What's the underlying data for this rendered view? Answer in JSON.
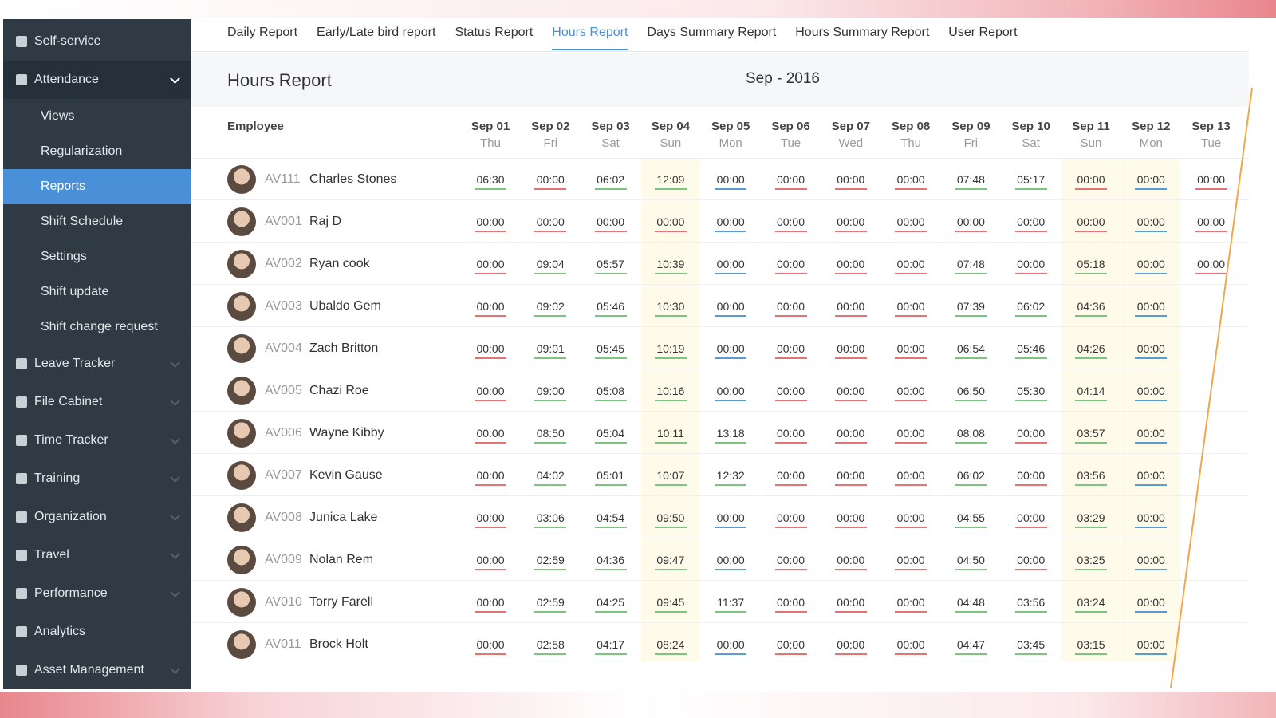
{
  "sidebar": {
    "items": [
      {
        "label": "Self-service"
      },
      {
        "label": "Attendance",
        "expanded": true
      },
      {
        "label": "Views",
        "sub": true
      },
      {
        "label": "Regularization",
        "sub": true
      },
      {
        "label": "Reports",
        "sub": true,
        "active": true
      },
      {
        "label": "Shift Schedule",
        "sub": true
      },
      {
        "label": "Settings",
        "sub": true
      },
      {
        "label": "Shift update",
        "sub": true
      },
      {
        "label": "Shift change request",
        "sub": true
      },
      {
        "label": "Leave Tracker",
        "collapsible": true
      },
      {
        "label": "File Cabinet",
        "collapsible": true
      },
      {
        "label": "Time Tracker",
        "collapsible": true
      },
      {
        "label": "Training",
        "collapsible": true
      },
      {
        "label": "Organization",
        "collapsible": true
      },
      {
        "label": "Travel",
        "collapsible": true
      },
      {
        "label": "Performance",
        "collapsible": true
      },
      {
        "label": "Analytics"
      },
      {
        "label": "Asset Management",
        "collapsible": true
      }
    ]
  },
  "tabs": [
    {
      "label": "Daily Report"
    },
    {
      "label": "Early/Late bird report"
    },
    {
      "label": "Status Report"
    },
    {
      "label": "Hours Report",
      "active": true
    },
    {
      "label": "Days Summary Report"
    },
    {
      "label": "Hours Summary Report"
    },
    {
      "label": "User Report"
    }
  ],
  "header": {
    "title": "Hours Report",
    "period": "Sep - 2016"
  },
  "table": {
    "employee_header": "Employee",
    "columns": [
      {
        "date": "Sep 01",
        "day": "Thu"
      },
      {
        "date": "Sep 02",
        "day": "Fri"
      },
      {
        "date": "Sep 03",
        "day": "Sat"
      },
      {
        "date": "Sep 04",
        "day": "Sun"
      },
      {
        "date": "Sep 05",
        "day": "Mon"
      },
      {
        "date": "Sep 06",
        "day": "Tue"
      },
      {
        "date": "Sep 07",
        "day": "Wed"
      },
      {
        "date": "Sep 08",
        "day": "Thu"
      },
      {
        "date": "Sep 09",
        "day": "Fri"
      },
      {
        "date": "Sep 10",
        "day": "Sat"
      },
      {
        "date": "Sep 11",
        "day": "Sun"
      },
      {
        "date": "Sep 12",
        "day": "Mon"
      },
      {
        "date": "Sep 13",
        "day": "Tue"
      }
    ],
    "rows": [
      {
        "id": "AV111",
        "name": "Charles Stones",
        "hours": [
          "06:30",
          "00:00",
          "06:02",
          "12:09",
          "00:00",
          "00:00",
          "00:00",
          "00:00",
          "07:48",
          "05:17",
          "00:00",
          "00:00",
          "00:00"
        ]
      },
      {
        "id": "AV001",
        "name": "Raj D",
        "hours": [
          "00:00",
          "00:00",
          "00:00",
          "00:00",
          "00:00",
          "00:00",
          "00:00",
          "00:00",
          "00:00",
          "00:00",
          "00:00",
          "00:00",
          "00:00"
        ]
      },
      {
        "id": "AV002",
        "name": "Ryan cook",
        "hours": [
          "00:00",
          "09:04",
          "05:57",
          "10:39",
          "00:00",
          "00:00",
          "00:00",
          "00:00",
          "07:48",
          "00:00",
          "05:18",
          "00:00",
          "00:00"
        ]
      },
      {
        "id": "AV003",
        "name": "Ubaldo Gem",
        "hours": [
          "00:00",
          "09:02",
          "05:46",
          "10:30",
          "00:00",
          "00:00",
          "00:00",
          "00:00",
          "07:39",
          "06:02",
          "04:36",
          "00:00",
          null
        ]
      },
      {
        "id": "AV004",
        "name": "Zach Britton",
        "hours": [
          "00:00",
          "09:01",
          "05:45",
          "10:19",
          "00:00",
          "00:00",
          "00:00",
          "00:00",
          "06:54",
          "05:46",
          "04:26",
          "00:00",
          null
        ]
      },
      {
        "id": "AV005",
        "name": "Chazi Roe",
        "hours": [
          "00:00",
          "09:00",
          "05:08",
          "10:16",
          "00:00",
          "00:00",
          "00:00",
          "00:00",
          "06:50",
          "05:30",
          "04:14",
          "00:00",
          null
        ]
      },
      {
        "id": "AV006",
        "name": "Wayne Kibby",
        "hours": [
          "00:00",
          "08:50",
          "05:04",
          "10:11",
          "13:18",
          "00:00",
          "00:00",
          "00:00",
          "08:08",
          "00:00",
          "03:57",
          "00:00",
          null
        ]
      },
      {
        "id": "AV007",
        "name": "Kevin Gause",
        "hours": [
          "00:00",
          "04:02",
          "05:01",
          "10:07",
          "12:32",
          "00:00",
          "00:00",
          "00:00",
          "06:02",
          "00:00",
          "03:56",
          "00:00",
          null
        ]
      },
      {
        "id": "AV008",
        "name": "Junica Lake",
        "hours": [
          "00:00",
          "03:06",
          "04:54",
          "09:50",
          "00:00",
          "00:00",
          "00:00",
          "00:00",
          "04:55",
          "00:00",
          "03:29",
          "00:00",
          null
        ]
      },
      {
        "id": "AV009",
        "name": "Nolan Rem",
        "hours": [
          "00:00",
          "02:59",
          "04:36",
          "09:47",
          "00:00",
          "00:00",
          "00:00",
          "00:00",
          "04:50",
          "00:00",
          "03:25",
          "00:00",
          null
        ]
      },
      {
        "id": "AV010",
        "name": "Torry Farell",
        "hours": [
          "00:00",
          "02:59",
          "04:25",
          "09:45",
          "11:37",
          "00:00",
          "00:00",
          "00:00",
          "04:48",
          "03:56",
          "03:24",
          "00:00",
          null
        ]
      },
      {
        "id": "AV011",
        "name": "Brock Holt",
        "hours": [
          "00:00",
          "02:58",
          "04:17",
          "08:24",
          "00:00",
          "00:00",
          "00:00",
          "00:00",
          "04:47",
          "03:45",
          "03:15",
          "00:00",
          null
        ]
      }
    ]
  }
}
